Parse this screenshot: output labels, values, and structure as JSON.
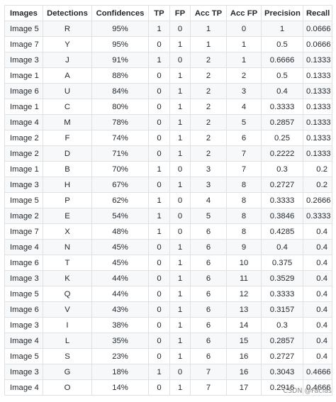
{
  "table": {
    "headers": [
      "Images",
      "Detections",
      "Confidences",
      "TP",
      "FP",
      "Acc TP",
      "Acc FP",
      "Precision",
      "Recall"
    ],
    "rows": [
      [
        "Image 5",
        "R",
        "95%",
        "1",
        "0",
        "1",
        "0",
        "1",
        "0.0666"
      ],
      [
        "Image 7",
        "Y",
        "95%",
        "0",
        "1",
        "1",
        "1",
        "0.5",
        "0.0666"
      ],
      [
        "Image 3",
        "J",
        "91%",
        "1",
        "0",
        "2",
        "1",
        "0.6666",
        "0.1333"
      ],
      [
        "Image 1",
        "A",
        "88%",
        "0",
        "1",
        "2",
        "2",
        "0.5",
        "0.1333"
      ],
      [
        "Image 6",
        "U",
        "84%",
        "0",
        "1",
        "2",
        "3",
        "0.4",
        "0.1333"
      ],
      [
        "Image 1",
        "C",
        "80%",
        "0",
        "1",
        "2",
        "4",
        "0.3333",
        "0.1333"
      ],
      [
        "Image 4",
        "M",
        "78%",
        "0",
        "1",
        "2",
        "5",
        "0.2857",
        "0.1333"
      ],
      [
        "Image 2",
        "F",
        "74%",
        "0",
        "1",
        "2",
        "6",
        "0.25",
        "0.1333"
      ],
      [
        "Image 2",
        "D",
        "71%",
        "0",
        "1",
        "2",
        "7",
        "0.2222",
        "0.1333"
      ],
      [
        "Image 1",
        "B",
        "70%",
        "1",
        "0",
        "3",
        "7",
        "0.3",
        "0.2"
      ],
      [
        "Image 3",
        "H",
        "67%",
        "0",
        "1",
        "3",
        "8",
        "0.2727",
        "0.2"
      ],
      [
        "Image 5",
        "P",
        "62%",
        "1",
        "0",
        "4",
        "8",
        "0.3333",
        "0.2666"
      ],
      [
        "Image 2",
        "E",
        "54%",
        "1",
        "0",
        "5",
        "8",
        "0.3846",
        "0.3333"
      ],
      [
        "Image 7",
        "X",
        "48%",
        "1",
        "0",
        "6",
        "8",
        "0.4285",
        "0.4"
      ],
      [
        "Image 4",
        "N",
        "45%",
        "0",
        "1",
        "6",
        "9",
        "0.4",
        "0.4"
      ],
      [
        "Image 6",
        "T",
        "45%",
        "0",
        "1",
        "6",
        "10",
        "0.375",
        "0.4"
      ],
      [
        "Image 3",
        "K",
        "44%",
        "0",
        "1",
        "6",
        "11",
        "0.3529",
        "0.4"
      ],
      [
        "Image 5",
        "Q",
        "44%",
        "0",
        "1",
        "6",
        "12",
        "0.3333",
        "0.4"
      ],
      [
        "Image 6",
        "V",
        "43%",
        "0",
        "1",
        "6",
        "13",
        "0.3157",
        "0.4"
      ],
      [
        "Image 3",
        "I",
        "38%",
        "0",
        "1",
        "6",
        "14",
        "0.3",
        "0.4"
      ],
      [
        "Image 4",
        "L",
        "35%",
        "0",
        "1",
        "6",
        "15",
        "0.2857",
        "0.4"
      ],
      [
        "Image 5",
        "S",
        "23%",
        "0",
        "1",
        "6",
        "16",
        "0.2727",
        "0.4"
      ],
      [
        "Image 3",
        "G",
        "18%",
        "1",
        "0",
        "7",
        "16",
        "0.3043",
        "0.4666"
      ],
      [
        "Image 4",
        "O",
        "14%",
        "0",
        "1",
        "7",
        "17",
        "0.2916",
        "0.4666"
      ]
    ]
  },
  "watermark": "CSDN @Facias"
}
